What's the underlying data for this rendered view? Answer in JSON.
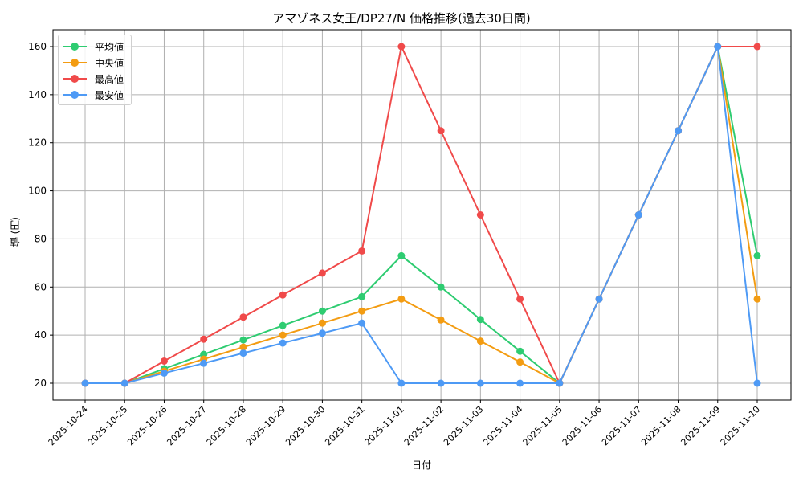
{
  "chart_data": {
    "type": "line",
    "title": "アマゾネス女王/DP27/N 価格推移(過去30日間)",
    "xlabel": "日付",
    "ylabel": "値 (円)",
    "ylim": [
      13,
      167
    ],
    "yticks": [
      20,
      40,
      60,
      80,
      100,
      120,
      140,
      160
    ],
    "grid": true,
    "legend_position": "upper left",
    "categories": [
      "2025-10-24",
      "2025-10-25",
      "2025-10-26",
      "2025-10-27",
      "2025-10-28",
      "2025-10-29",
      "2025-10-30",
      "2025-10-31",
      "2025-11-01",
      "2025-11-02",
      "2025-11-03",
      "2025-11-04",
      "2025-11-05",
      "2025-11-06",
      "2025-11-07",
      "2025-11-08",
      "2025-11-09",
      "2025-11-10"
    ],
    "series": [
      {
        "name": "平均値",
        "color": "#2ecc71",
        "values": [
          20,
          20,
          26,
          32,
          38,
          44,
          50,
          56,
          73,
          60,
          46.5,
          33.3,
          20,
          55,
          90,
          125,
          160,
          73
        ]
      },
      {
        "name": "中央値",
        "color": "#f39c12",
        "values": [
          20,
          20,
          25,
          30,
          35,
          40,
          45,
          50,
          55,
          46.3,
          37.5,
          28.8,
          20,
          55,
          90,
          125,
          160,
          55
        ]
      },
      {
        "name": "最高値",
        "color": "#f04a4a",
        "values": [
          20,
          20,
          29.2,
          38.3,
          47.5,
          56.7,
          65.8,
          75,
          160,
          125,
          90,
          55,
          20,
          55,
          90,
          125,
          160,
          160
        ]
      },
      {
        "name": "最安値",
        "color": "#4e9af5",
        "values": [
          20,
          20,
          24.2,
          28.3,
          32.5,
          36.7,
          40.8,
          45,
          20,
          20,
          20,
          20,
          20,
          55,
          90,
          125,
          160,
          20
        ]
      }
    ]
  },
  "chart": {
    "title": "アマゾネス女王/DP27/N 価格推移(過去30日間)",
    "xlabel": "日付",
    "ylabel": "値 (円)",
    "legend": [
      {
        "label": "平均値",
        "color": "#2ecc71"
      },
      {
        "label": "中央値",
        "color": "#f39c12"
      },
      {
        "label": "最高値",
        "color": "#f04a4a"
      },
      {
        "label": "最安値",
        "color": "#4e9af5"
      }
    ]
  }
}
